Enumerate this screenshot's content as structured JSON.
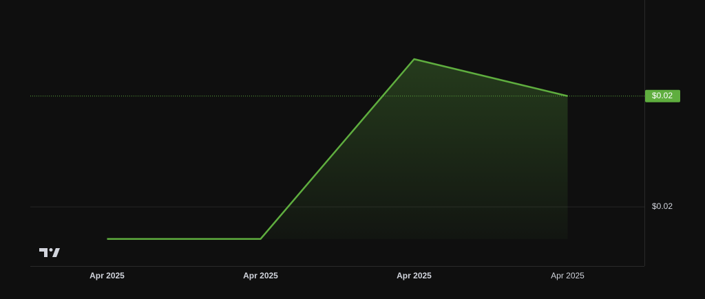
{
  "chart_data": {
    "type": "area",
    "categories": [
      "Apr 2025",
      "Apr 2025",
      "Apr 2025",
      "Apr 2025"
    ],
    "series": [
      {
        "color": "#5fae3f",
        "values": [
          0.0187,
          0.0187,
          0.026,
          0.0245
        ]
      }
    ],
    "last_value_label": "$0.02",
    "ylim": [
      0.0176,
      0.0284
    ],
    "yticks": [
      {
        "value": 0.02,
        "label": "$0.02"
      }
    ],
    "grid": true
  }
}
